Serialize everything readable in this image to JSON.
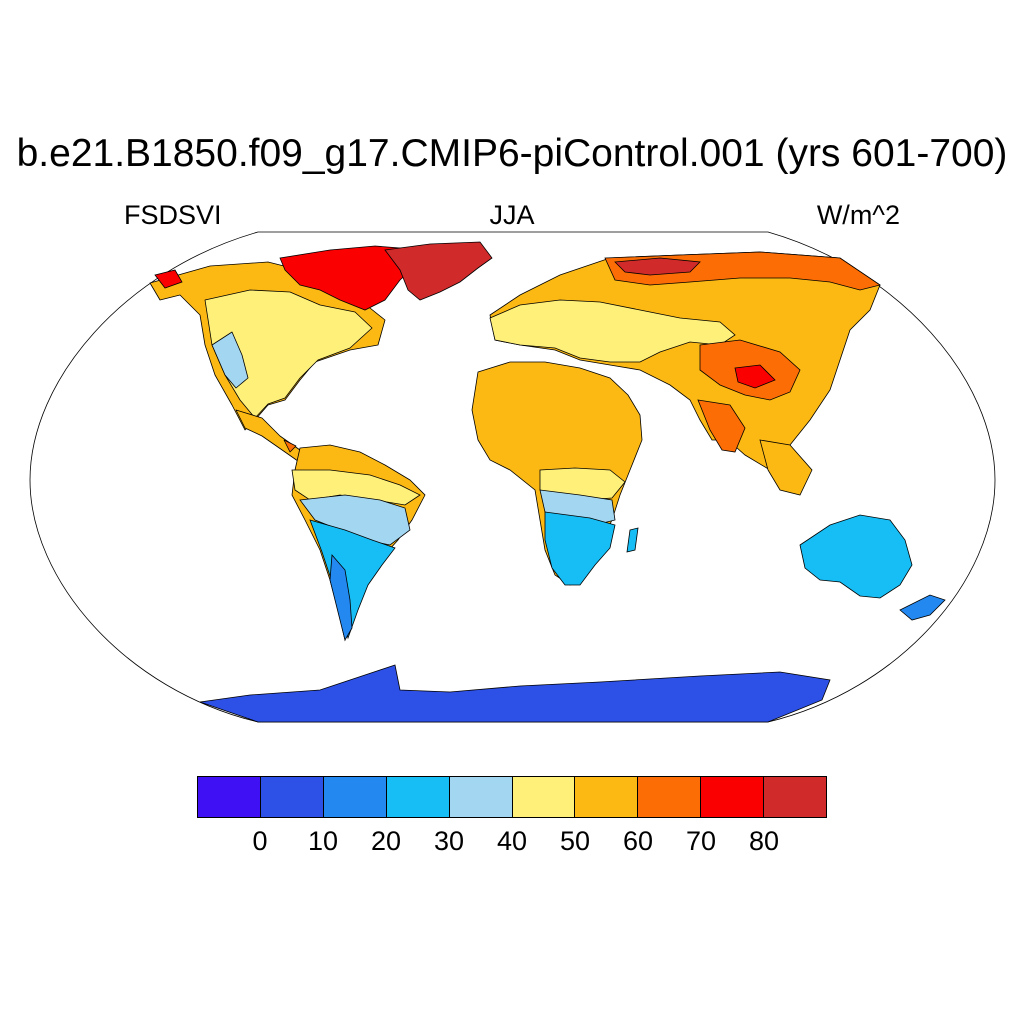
{
  "title": "b.e21.B1850.f09_g17.CMIP6-piControl.001 (yrs 601-700)",
  "left_label": "FSDSVI",
  "center_label": "JJA",
  "right_label": "W/m^2",
  "colorbar": {
    "colors": [
      "#4010f5",
      "#2d50e6",
      "#2388f0",
      "#16bef5",
      "#a3d6f0",
      "#fff07a",
      "#fcb813",
      "#fc6e05",
      "#fa0000",
      "#d12a2a"
    ],
    "labels": [
      "0",
      "10",
      "20",
      "30",
      "40",
      "50",
      "60",
      "70",
      "80"
    ]
  },
  "map": {
    "projection": "Robinson",
    "variable": "FSDSVI",
    "ocean": "#ffffff",
    "coast": "#000000"
  }
}
